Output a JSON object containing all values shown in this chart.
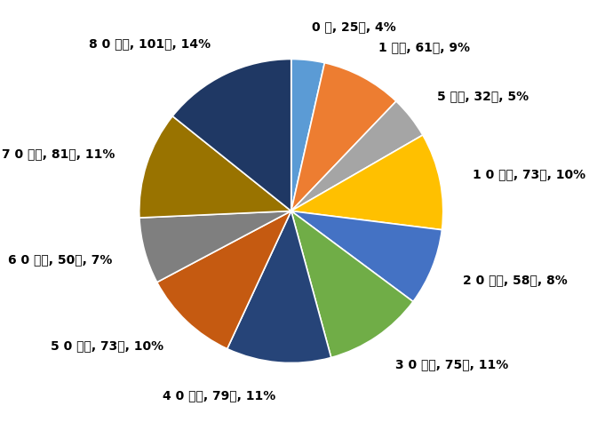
{
  "labels": [
    "0 歳",
    "1 歳～",
    "5 歳～",
    "1 0 歳～",
    "2 0 歳～",
    "3 0 歳～",
    "4 0 歳～",
    "5 0 歳～",
    "6 0 歳～",
    "7 0 歳～",
    "8 0 歳～"
  ],
  "values": [
    25,
    61,
    32,
    73,
    58,
    75,
    79,
    73,
    50,
    81,
    101
  ],
  "percents": [
    4,
    9,
    5,
    10,
    8,
    11,
    11,
    10,
    7,
    11,
    14
  ],
  "colors": [
    "#5B9BD5",
    "#ED7D31",
    "#A5A5A5",
    "#FFC000",
    "#4472C4",
    "#70AD47",
    "#264478",
    "#C55A11",
    "#7F7F7F",
    "#997300",
    "#1F3864"
  ],
  "background_color": "#FFFFFF",
  "startangle": 90,
  "figsize": [
    6.9,
    4.75
  ],
  "dpi": 100,
  "label_fontsize": 10,
  "labeldistance": 1.22
}
